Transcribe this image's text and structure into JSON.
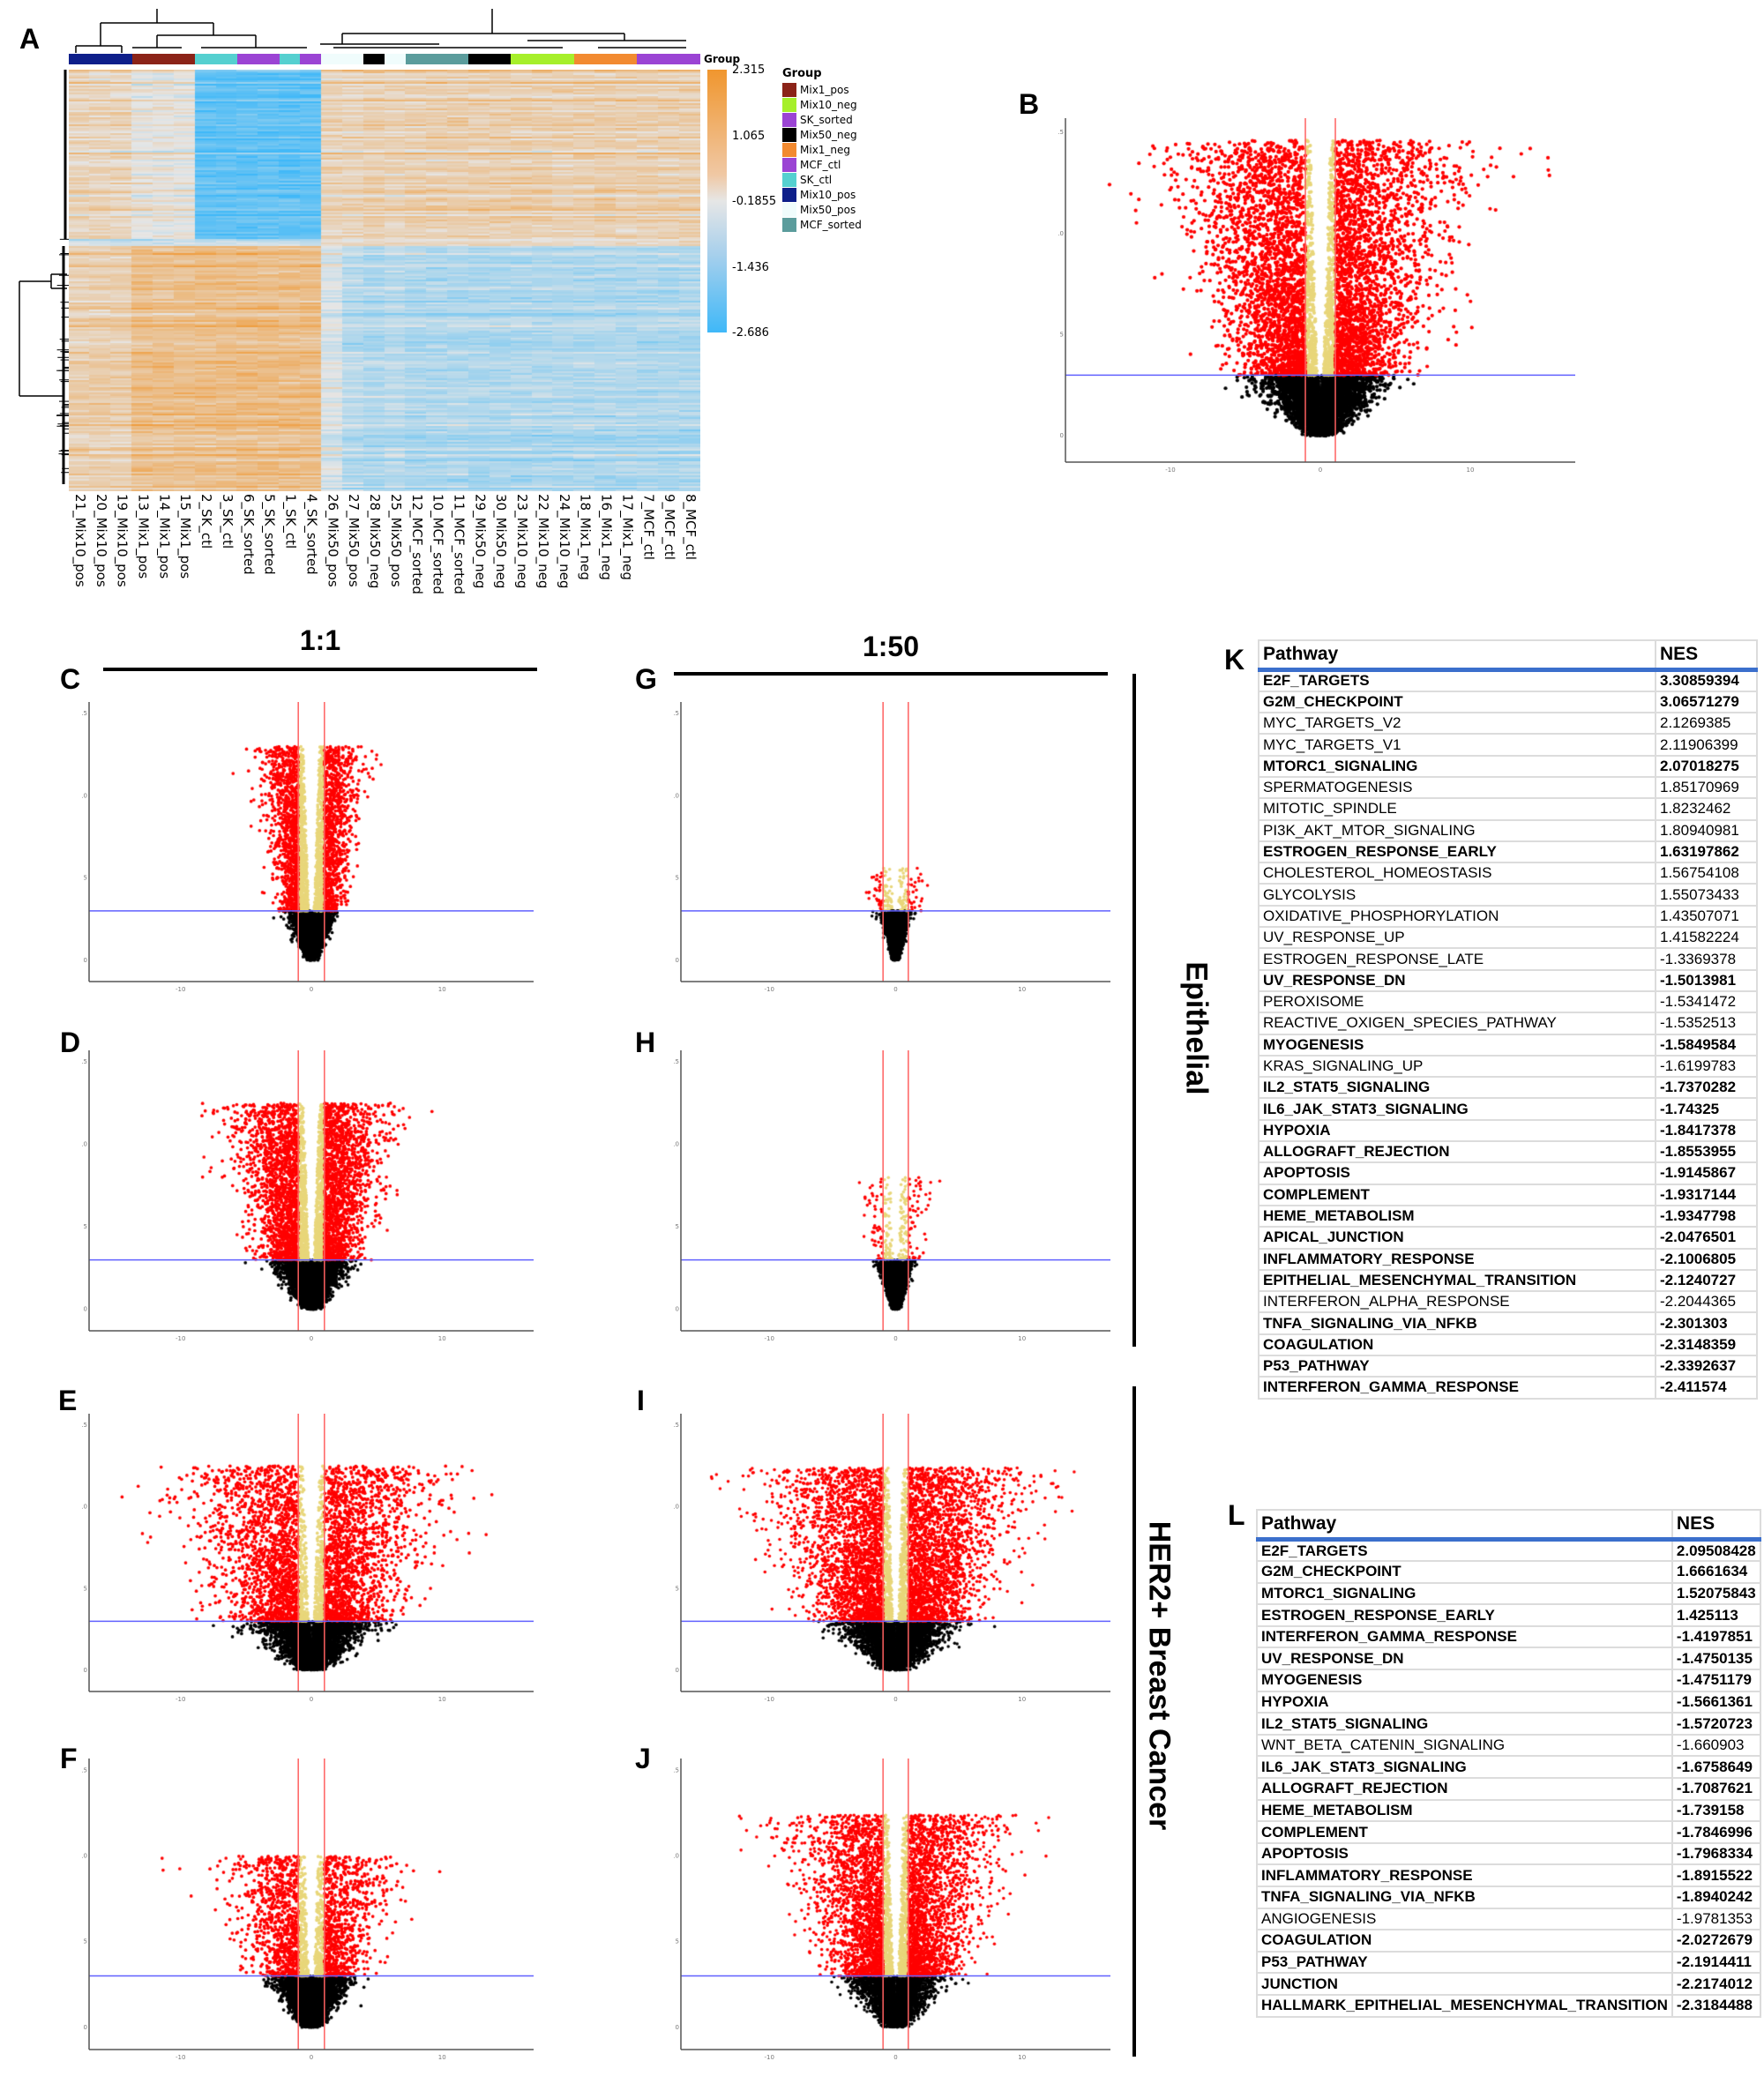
{
  "panel_labels": {
    "A": "A",
    "B": "B",
    "C": "C",
    "D": "D",
    "E": "E",
    "F": "F",
    "G": "G",
    "H": "H",
    "I": "I",
    "J": "J",
    "K": "K",
    "L": "L"
  },
  "column_headers": {
    "ratio_1_1": "1:1",
    "ratio_1_50": "1:50"
  },
  "row_headers": {
    "epithelial": "Epithelial",
    "her2": "HER2+ Breast Cancer"
  },
  "heatmap": {
    "annotation_label": "Group",
    "legend_title": "Group",
    "scale_ticks": [
      "2.315",
      "1.065",
      "-0.1855",
      "-1.436",
      "-2.686"
    ],
    "scale_colors": {
      "high": "#f0962e",
      "mid": "#e6e6e6",
      "low": "#3fb8f8"
    },
    "groups": [
      {
        "name": "Mix1_pos",
        "color": "#8b2318"
      },
      {
        "name": "Mix10_neg",
        "color": "#a6ef2a"
      },
      {
        "name": "SK_sorted",
        "color": "#9b44d4"
      },
      {
        "name": "Mix50_neg",
        "color": "#000000"
      },
      {
        "name": "Mix1_neg",
        "color": "#f28a30"
      },
      {
        "name": "MCF_ctl",
        "color": "#9b44d4"
      },
      {
        "name": "SK_ctl",
        "color": "#55d0d0"
      },
      {
        "name": "Mix10_pos",
        "color": "#0e1f8a"
      },
      {
        "name": "Mix50_pos",
        "color": "#f0fcfc"
      },
      {
        "name": "MCF_sorted",
        "color": "#5b9c9c"
      }
    ],
    "columns": [
      {
        "label": "21_Mix10_pos",
        "group": "Mix10_pos"
      },
      {
        "label": "20_Mix10_pos",
        "group": "Mix10_pos"
      },
      {
        "label": "19_Mix10_pos",
        "group": "Mix10_pos"
      },
      {
        "label": "13_Mix1_pos",
        "group": "Mix1_pos"
      },
      {
        "label": "14_Mix1_pos",
        "group": "Mix1_pos"
      },
      {
        "label": "15_Mix1_pos",
        "group": "Mix1_pos"
      },
      {
        "label": "2_SK_ctl",
        "group": "SK_ctl"
      },
      {
        "label": "3_SK_ctl",
        "group": "SK_ctl"
      },
      {
        "label": "6_SK_sorted",
        "group": "SK_sorted"
      },
      {
        "label": "5_SK_sorted",
        "group": "SK_sorted"
      },
      {
        "label": "1_SK_ctl",
        "group": "SK_ctl"
      },
      {
        "label": "4_SK_sorted",
        "group": "SK_sorted"
      },
      {
        "label": "26_Mix50_pos",
        "group": "Mix50_pos"
      },
      {
        "label": "27_Mix50_pos",
        "group": "Mix50_pos"
      },
      {
        "label": "28_Mix50_neg",
        "group": "Mix50_neg"
      },
      {
        "label": "25_Mix50_pos",
        "group": "Mix50_pos"
      },
      {
        "label": "12_MCF_sorted",
        "group": "MCF_sorted"
      },
      {
        "label": "10_MCF_sorted",
        "group": "MCF_sorted"
      },
      {
        "label": "11_MCF_sorted",
        "group": "MCF_sorted"
      },
      {
        "label": "29_Mix50_neg",
        "group": "Mix50_neg"
      },
      {
        "label": "30_Mix50_neg",
        "group": "Mix50_neg"
      },
      {
        "label": "23_Mix10_neg",
        "group": "Mix10_neg"
      },
      {
        "label": "22_Mix10_neg",
        "group": "Mix10_neg"
      },
      {
        "label": "24_Mix10_neg",
        "group": "Mix10_neg"
      },
      {
        "label": "18_Mix1_neg",
        "group": "Mix1_neg"
      },
      {
        "label": "16_Mix1_neg",
        "group": "Mix1_neg"
      },
      {
        "label": "17_Mix1_neg",
        "group": "Mix1_neg"
      },
      {
        "label": "7_MCF_ctl",
        "group": "MCF_ctl"
      },
      {
        "label": "9_MCF_ctl",
        "group": "MCF_ctl"
      },
      {
        "label": "8_MCF_ctl",
        "group": "MCF_ctl"
      }
    ]
  },
  "chart_data": [
    {
      "panel": "B",
      "type": "scatter",
      "x_ticks": [
        -10,
        0,
        10
      ],
      "y_ticks": [
        0,
        5,
        10,
        15
      ],
      "xlim": [
        -17,
        17
      ],
      "ylim": [
        -1.3,
        15.7
      ],
      "fold_change_thresholds": [
        -1,
        1
      ],
      "significance_threshold": 3,
      "colors": {
        "significant": "#ff0000",
        "fold_only": "#e8d67a",
        "not_significant": "#000000",
        "threshold_v": "#ff6060",
        "threshold_h": "#6060ff"
      }
    },
    {
      "panel": "C",
      "type": "scatter",
      "x_ticks": [
        -10,
        0,
        10
      ],
      "y_ticks": [
        0,
        5,
        10,
        15
      ],
      "xlim": [
        -17,
        17
      ],
      "ylim": [
        -1.3,
        15.7
      ],
      "fold_change_thresholds": [
        -1,
        1
      ],
      "significance_threshold": 3
    },
    {
      "panel": "D",
      "type": "scatter",
      "x_ticks": [
        -10,
        0,
        10
      ],
      "y_ticks": [
        0,
        5,
        10,
        15
      ],
      "xlim": [
        -17,
        17
      ],
      "ylim": [
        -1.3,
        15.7
      ],
      "fold_change_thresholds": [
        -1,
        1
      ],
      "significance_threshold": 3
    },
    {
      "panel": "E",
      "type": "scatter",
      "x_ticks": [
        -10,
        0,
        10
      ],
      "y_ticks": [
        0,
        5,
        10,
        15
      ],
      "xlim": [
        -17,
        17
      ],
      "ylim": [
        -1.3,
        15.7
      ],
      "fold_change_thresholds": [
        -1,
        1
      ],
      "significance_threshold": 3
    },
    {
      "panel": "F",
      "type": "scatter",
      "x_ticks": [
        -10,
        0,
        10
      ],
      "y_ticks": [
        0,
        5,
        10,
        15
      ],
      "xlim": [
        -17,
        17
      ],
      "ylim": [
        -1.3,
        15.7
      ],
      "fold_change_thresholds": [
        -1,
        1
      ],
      "significance_threshold": 3
    },
    {
      "panel": "G",
      "type": "scatter",
      "x_ticks": [
        -10,
        0,
        10
      ],
      "y_ticks": [
        0,
        5,
        10,
        15
      ],
      "xlim": [
        -17,
        17
      ],
      "ylim": [
        -1.3,
        15.7
      ],
      "fold_change_thresholds": [
        -1,
        1
      ],
      "significance_threshold": 3
    },
    {
      "panel": "H",
      "type": "scatter",
      "x_ticks": [
        -10,
        0,
        10
      ],
      "y_ticks": [
        0,
        5,
        10,
        15
      ],
      "xlim": [
        -17,
        17
      ],
      "ylim": [
        -1.3,
        15.7
      ],
      "fold_change_thresholds": [
        -1,
        1
      ],
      "significance_threshold": 3
    },
    {
      "panel": "I",
      "type": "scatter",
      "x_ticks": [
        -10,
        0,
        10
      ],
      "y_ticks": [
        0,
        5,
        10,
        15
      ],
      "xlim": [
        -17,
        17
      ],
      "ylim": [
        -1.3,
        15.7
      ],
      "fold_change_thresholds": [
        -1,
        1
      ],
      "significance_threshold": 3
    },
    {
      "panel": "J",
      "type": "scatter",
      "x_ticks": [
        -10,
        0,
        10
      ],
      "y_ticks": [
        0,
        5,
        10,
        15
      ],
      "xlim": [
        -17,
        17
      ],
      "ylim": [
        -1.3,
        15.7
      ],
      "fold_change_thresholds": [
        -1,
        1
      ],
      "significance_threshold": 3
    },
    {
      "panel": "K",
      "type": "table",
      "headers": [
        "Pathway",
        "NES"
      ],
      "rows": [
        [
          "E2F_TARGETS",
          "3.30859394",
          true
        ],
        [
          "G2M_CHECKPOINT",
          "3.06571279",
          true
        ],
        [
          "MYC_TARGETS_V2",
          "2.1269385",
          false
        ],
        [
          "MYC_TARGETS_V1",
          "2.11906399",
          false
        ],
        [
          "MTORC1_SIGNALING",
          "2.07018275",
          true
        ],
        [
          "SPERMATOGENESIS",
          "1.85170969",
          false
        ],
        [
          "MITOTIC_SPINDLE",
          "1.8232462",
          false
        ],
        [
          "PI3K_AKT_MTOR_SIGNALING",
          "1.80940981",
          false
        ],
        [
          "ESTROGEN_RESPONSE_EARLY",
          "1.63197862",
          true
        ],
        [
          "CHOLESTEROL_HOMEOSTASIS",
          "1.56754108",
          false
        ],
        [
          "GLYCOLYSIS",
          "1.55073433",
          false
        ],
        [
          "OXIDATIVE_PHOSPHORYLATION",
          "1.43507071",
          false
        ],
        [
          "UV_RESPONSE_UP",
          "1.41582224",
          false
        ],
        [
          "ESTROGEN_RESPONSE_LATE",
          "-1.3369378",
          false
        ],
        [
          "UV_RESPONSE_DN",
          "-1.5013981",
          true
        ],
        [
          "PEROXISOME",
          "-1.5341472",
          false
        ],
        [
          "REACTIVE_OXIGEN_SPECIES_PATHWAY",
          "-1.5352513",
          false
        ],
        [
          "MYOGENESIS",
          "-1.5849584",
          true
        ],
        [
          "KRAS_SIGNALING_UP",
          "-1.6199783",
          false
        ],
        [
          "IL2_STAT5_SIGNALING",
          "-1.7370282",
          true
        ],
        [
          "IL6_JAK_STAT3_SIGNALING",
          "-1.74325",
          true
        ],
        [
          "HYPOXIA",
          "-1.8417378",
          true
        ],
        [
          "ALLOGRAFT_REJECTION",
          "-1.8553955",
          true
        ],
        [
          "APOPTOSIS",
          "-1.9145867",
          true
        ],
        [
          "COMPLEMENT",
          "-1.9317144",
          true
        ],
        [
          "HEME_METABOLISM",
          "-1.9347798",
          true
        ],
        [
          "APICAL_JUNCTION",
          "-2.0476501",
          true
        ],
        [
          "INFLAMMATORY_RESPONSE",
          "-2.1006805",
          true
        ],
        [
          "EPITHELIAL_MESENCHYMAL_TRANSITION",
          "-2.1240727",
          true
        ],
        [
          "INTERFERON_ALPHA_RESPONSE",
          "-2.2044365",
          false
        ],
        [
          "TNFA_SIGNALING_VIA_NFKB",
          "-2.301303",
          true
        ],
        [
          "COAGULATION",
          "-2.3148359",
          true
        ],
        [
          "P53_PATHWAY",
          "-2.3392637",
          true
        ],
        [
          "INTERFERON_GAMMA_RESPONSE",
          "-2.411574",
          true
        ]
      ]
    },
    {
      "panel": "L",
      "type": "table",
      "headers": [
        "Pathway",
        "NES"
      ],
      "rows": [
        [
          "E2F_TARGETS",
          "2.09508428",
          true
        ],
        [
          "G2M_CHECKPOINT",
          "1.6661634",
          true
        ],
        [
          "MTORC1_SIGNALING",
          "1.52075843",
          true
        ],
        [
          "ESTROGEN_RESPONSE_EARLY",
          "1.425113",
          true
        ],
        [
          "INTERFERON_GAMMA_RESPONSE",
          "-1.4197851",
          true
        ],
        [
          "UV_RESPONSE_DN",
          "-1.4750135",
          true
        ],
        [
          "MYOGENESIS",
          "-1.4751179",
          true
        ],
        [
          "HYPOXIA",
          "-1.5661361",
          true
        ],
        [
          "IL2_STAT5_SIGNALING",
          "-1.5720723",
          true
        ],
        [
          "WNT_BETA_CATENIN_SIGNALING",
          "-1.660903",
          false
        ],
        [
          "IL6_JAK_STAT3_SIGNALING",
          "-1.6758649",
          true
        ],
        [
          "ALLOGRAFT_REJECTION",
          "-1.7087621",
          true
        ],
        [
          "HEME_METABOLISM",
          "-1.739158",
          true
        ],
        [
          "COMPLEMENT",
          "-1.7846996",
          true
        ],
        [
          "APOPTOSIS",
          "-1.7968334",
          true
        ],
        [
          "INFLAMMATORY_RESPONSE",
          "-1.8915522",
          true
        ],
        [
          "TNFA_SIGNALING_VIA_NFKB",
          "-1.8940242",
          true
        ],
        [
          "ANGIOGENESIS",
          "-1.9781353",
          false
        ],
        [
          "COAGULATION",
          "-2.0272679",
          true
        ],
        [
          "P53_PATHWAY",
          "-2.1914411",
          true
        ],
        [
          "JUNCTION",
          "-2.2174012",
          true
        ],
        [
          "HALLMARK_EPITHELIAL_MESENCHYMAL_TRANSITION",
          "-2.3184488",
          true
        ]
      ]
    }
  ]
}
